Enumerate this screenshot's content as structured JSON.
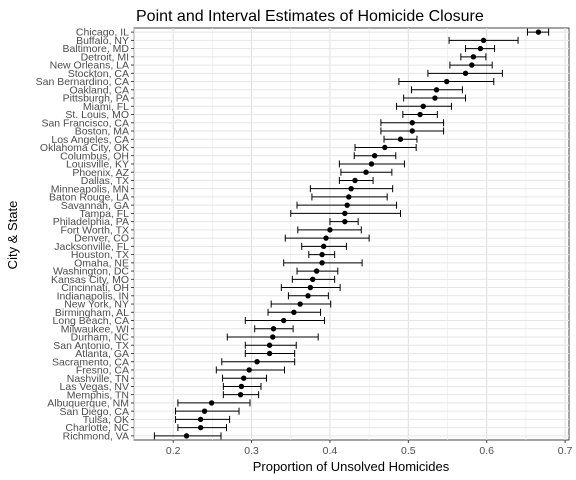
{
  "chart_data": {
    "type": "scatter",
    "title": "Point and Interval Estimates of Homicide Closure",
    "xlabel": "Proportion of Unsolved Homicides",
    "ylabel": "City & State",
    "xlim": [
      0.15,
      0.705
    ],
    "xticks": [
      "0.2",
      "0.3",
      "0.4",
      "0.5",
      "0.6",
      "0.7"
    ],
    "grid": true,
    "legend": "none",
    "point_color": "#000000",
    "cities": [
      {
        "label": "Chicago, IL",
        "estimate": 0.666,
        "lower": 0.652,
        "upper": 0.679
      },
      {
        "label": "Buffalo, NY",
        "estimate": 0.596,
        "lower": 0.552,
        "upper": 0.64
      },
      {
        "label": "Baltimore, MD",
        "estimate": 0.592,
        "lower": 0.573,
        "upper": 0.61
      },
      {
        "label": "Detroit, MI",
        "estimate": 0.583,
        "lower": 0.567,
        "upper": 0.599
      },
      {
        "label": "New Orleans, LA",
        "estimate": 0.581,
        "lower": 0.553,
        "upper": 0.607
      },
      {
        "label": "Stockton, CA",
        "estimate": 0.573,
        "lower": 0.525,
        "upper": 0.62
      },
      {
        "label": "San Bernardino, CA",
        "estimate": 0.549,
        "lower": 0.488,
        "upper": 0.609
      },
      {
        "label": "Oakland, CA",
        "estimate": 0.536,
        "lower": 0.504,
        "upper": 0.569
      },
      {
        "label": "Pittsburgh, PA",
        "estimate": 0.534,
        "lower": 0.494,
        "upper": 0.573
      },
      {
        "label": "Miami, FL",
        "estimate": 0.519,
        "lower": 0.485,
        "upper": 0.555
      },
      {
        "label": "St. Louis, MO",
        "estimate": 0.515,
        "lower": 0.493,
        "upper": 0.537
      },
      {
        "label": "San Francisco, CA",
        "estimate": 0.505,
        "lower": 0.465,
        "upper": 0.545
      },
      {
        "label": "Boston, MA",
        "estimate": 0.505,
        "lower": 0.465,
        "upper": 0.545
      },
      {
        "label": "Los Angeles, CA",
        "estimate": 0.49,
        "lower": 0.469,
        "upper": 0.511
      },
      {
        "label": "Oklahoma City, OK",
        "estimate": 0.47,
        "lower": 0.432,
        "upper": 0.51
      },
      {
        "label": "Columbus, OH",
        "estimate": 0.457,
        "lower": 0.431,
        "upper": 0.484
      },
      {
        "label": "Louisville, KY",
        "estimate": 0.453,
        "lower": 0.412,
        "upper": 0.495
      },
      {
        "label": "Phoenix, AZ",
        "estimate": 0.446,
        "lower": 0.414,
        "upper": 0.479
      },
      {
        "label": "Dallas, TX",
        "estimate": 0.432,
        "lower": 0.412,
        "upper": 0.455
      },
      {
        "label": "Minneapolis, MN",
        "estimate": 0.427,
        "lower": 0.375,
        "upper": 0.48
      },
      {
        "label": "Baton Rouge, LA",
        "estimate": 0.424,
        "lower": 0.377,
        "upper": 0.473
      },
      {
        "label": "Savannah, GA",
        "estimate": 0.422,
        "lower": 0.358,
        "upper": 0.485
      },
      {
        "label": "Tampa, FL",
        "estimate": 0.419,
        "lower": 0.35,
        "upper": 0.49
      },
      {
        "label": "Philadelphia, PA",
        "estimate": 0.419,
        "lower": 0.4,
        "upper": 0.436
      },
      {
        "label": "Fort Worth, TX",
        "estimate": 0.4,
        "lower": 0.359,
        "upper": 0.44
      },
      {
        "label": "Denver, CO",
        "estimate": 0.395,
        "lower": 0.343,
        "upper": 0.45
      },
      {
        "label": "Jacksonville, FL",
        "estimate": 0.392,
        "lower": 0.364,
        "upper": 0.421
      },
      {
        "label": "Houston, TX",
        "estimate": 0.39,
        "lower": 0.373,
        "upper": 0.406
      },
      {
        "label": "Omaha, NE",
        "estimate": 0.39,
        "lower": 0.341,
        "upper": 0.441
      },
      {
        "label": "Washington, DC",
        "estimate": 0.383,
        "lower": 0.358,
        "upper": 0.41
      },
      {
        "label": "Kansas City, MO",
        "estimate": 0.378,
        "lower": 0.352,
        "upper": 0.406
      },
      {
        "label": "Cincinnati, OH",
        "estimate": 0.375,
        "lower": 0.338,
        "upper": 0.413
      },
      {
        "label": "Indianapolis, IN",
        "estimate": 0.372,
        "lower": 0.347,
        "upper": 0.398
      },
      {
        "label": "New York, NY",
        "estimate": 0.362,
        "lower": 0.325,
        "upper": 0.401
      },
      {
        "label": "Birmingham, AL",
        "estimate": 0.354,
        "lower": 0.321,
        "upper": 0.388
      },
      {
        "label": "Long Beach, CA",
        "estimate": 0.341,
        "lower": 0.292,
        "upper": 0.393
      },
      {
        "label": "Milwaukee, WI",
        "estimate": 0.328,
        "lower": 0.304,
        "upper": 0.353
      },
      {
        "label": "Durham, NC",
        "estimate": 0.327,
        "lower": 0.269,
        "upper": 0.385
      },
      {
        "label": "San Antonio, TX",
        "estimate": 0.323,
        "lower": 0.292,
        "upper": 0.357
      },
      {
        "label": "Atlanta, GA",
        "estimate": 0.323,
        "lower": 0.292,
        "upper": 0.355
      },
      {
        "label": "Sacramento, CA",
        "estimate": 0.307,
        "lower": 0.262,
        "upper": 0.355
      },
      {
        "label": "Fresno, CA",
        "estimate": 0.297,
        "lower": 0.255,
        "upper": 0.342
      },
      {
        "label": "Nashville, TN",
        "estimate": 0.29,
        "lower": 0.263,
        "upper": 0.319
      },
      {
        "label": "Las Vegas, NV",
        "estimate": 0.287,
        "lower": 0.264,
        "upper": 0.312
      },
      {
        "label": "Memphis, TN",
        "estimate": 0.286,
        "lower": 0.264,
        "upper": 0.309
      },
      {
        "label": "Albuquerque, NM",
        "estimate": 0.249,
        "lower": 0.206,
        "upper": 0.298
      },
      {
        "label": "San Diego, CA",
        "estimate": 0.24,
        "lower": 0.203,
        "upper": 0.284
      },
      {
        "label": "Tulsa, OK",
        "estimate": 0.235,
        "lower": 0.203,
        "upper": 0.272
      },
      {
        "label": "Charlotte, NC",
        "estimate": 0.235,
        "lower": 0.206,
        "upper": 0.268
      },
      {
        "label": "Richmond, VA",
        "estimate": 0.217,
        "lower": 0.176,
        "upper": 0.261
      }
    ]
  }
}
